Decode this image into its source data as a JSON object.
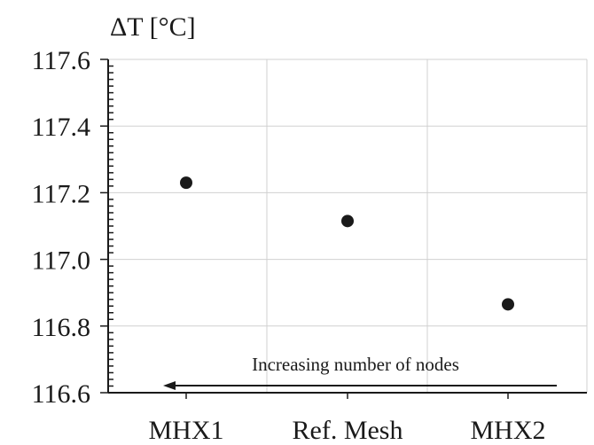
{
  "chart_data": {
    "type": "scatter",
    "title": "",
    "xlabel": "",
    "ylabel": "ΔT [°C]",
    "categories": [
      "MHX1",
      "Ref. Mesh",
      "MHX2"
    ],
    "values": [
      117.23,
      117.115,
      116.865
    ],
    "ylim": [
      116.6,
      117.6
    ],
    "yticks": [
      "116.6",
      "116.8",
      "117.0",
      "117.2",
      "117.4",
      "117.6"
    ],
    "grid": true,
    "marker_color": "#1a1a1a",
    "annotation": {
      "text": "Increasing number of nodes",
      "arrow_direction": "left"
    }
  }
}
